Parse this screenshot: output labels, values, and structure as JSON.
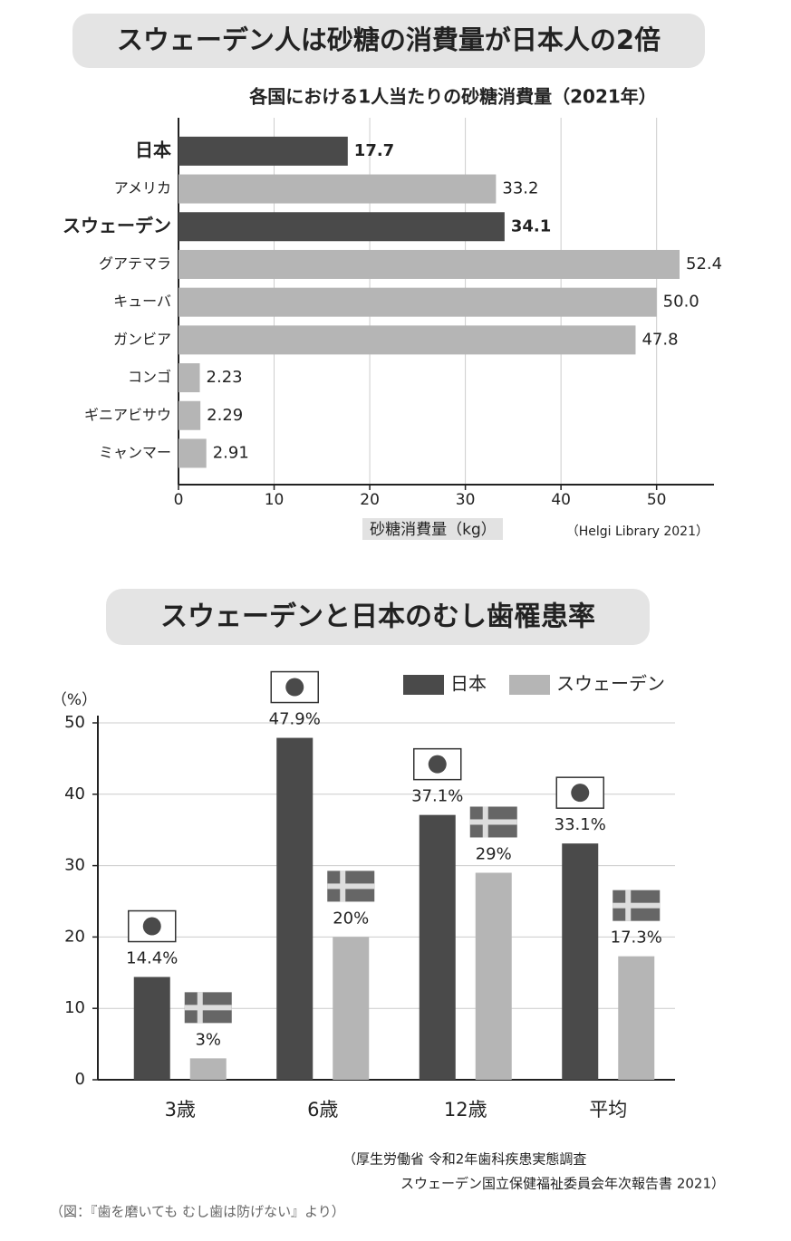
{
  "chart_data": [
    {
      "type": "barh",
      "title": "スウェーデン人は砂糖の消費量が日本人の2倍",
      "subtitle": "各国における1人当たりの砂糖消費量（2021年）",
      "categories": [
        "日本",
        "アメリカ",
        "スウェーデン",
        "グアテマラ",
        "キューバ",
        "ガンビア",
        "コンゴ",
        "ギニアビサウ",
        "ミャンマー"
      ],
      "values": [
        17.7,
        33.2,
        34.1,
        52.4,
        50.0,
        47.8,
        2.23,
        2.29,
        2.91
      ],
      "value_labels": [
        "17.7",
        "33.2",
        "34.1",
        "52.4",
        "50.0",
        "47.8",
        "2.23",
        "2.29",
        "2.91"
      ],
      "colors": [
        "#4a4a4a",
        "#b5b5b5",
        "#4a4a4a",
        "#b5b5b5",
        "#b5b5b5",
        "#b5b5b5",
        "#b5b5b5",
        "#b5b5b5",
        "#b5b5b5"
      ],
      "highlight_color": "#4a4a4a",
      "xlim": [
        0,
        56
      ],
      "xticks": [
        0,
        10,
        20,
        30,
        40,
        50
      ],
      "grid": true,
      "xlabel": "砂糖消費量（kg）",
      "source": "（Helgi Library 2021）"
    },
    {
      "type": "bar",
      "title": "スウェーデンと日本のむし歯罹患率",
      "ylabel": "（%）",
      "categories": [
        "3歳",
        "6歳",
        "12歳",
        "平均"
      ],
      "series": [
        {
          "name": "日本",
          "color": "#4a4a4a",
          "values": [
            14.4,
            47.9,
            37.1,
            33.1
          ],
          "value_labels": [
            "14.4%",
            "47.9%",
            "37.1%",
            "33.1%"
          ]
        },
        {
          "name": "スウェーデン",
          "color": "#b5b5b5",
          "values": [
            3,
            20,
            29,
            17.3
          ],
          "value_labels": [
            "3%",
            "20%",
            "29%",
            "17.3%"
          ]
        }
      ],
      "ylim": [
        0,
        50
      ],
      "yticks": [
        0,
        10,
        20,
        30,
        40,
        50
      ],
      "grid": true,
      "legend": "top-right",
      "source": [
        "（厚生労働省 令和2年歯科疾患実態調査",
        "スウェーデン国立保健福祉委員会年次報告書 2021）"
      ]
    }
  ],
  "caption": "（図：『歯を磨いても むし歯は防げない』より）"
}
